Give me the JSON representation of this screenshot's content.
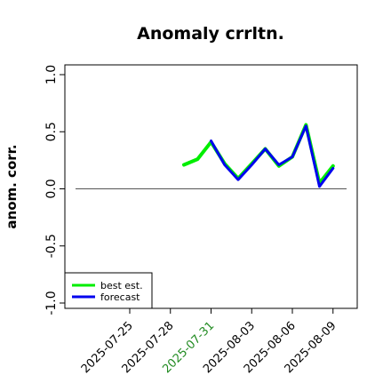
{
  "chart_data": {
    "type": "line",
    "title": "Anomaly crrltn.",
    "xlabel": "",
    "ylabel": "anom. corr.",
    "ylim": [
      -1.0,
      1.0
    ],
    "yticks": [
      -1.0,
      -0.5,
      0.0,
      0.5,
      1.0
    ],
    "ytick_labels": [
      "-1.0",
      "-0.5",
      "0.0",
      "0.5",
      "1.0"
    ],
    "xlim": [
      "2025-07-21",
      "2025-08-10"
    ],
    "xticks": [
      "2025-07-25",
      "2025-07-28",
      "2025-07-31",
      "2025-08-03",
      "2025-08-06",
      "2025-08-09"
    ],
    "xtick_colors": [
      "#000000",
      "#000000",
      "#228B22",
      "#000000",
      "#000000",
      "#000000"
    ],
    "reference_line": 0.0,
    "grid": false,
    "legend_position": "bottom-left",
    "series": [
      {
        "name": "best est.",
        "color": "#00ee00",
        "x": [
          "2025-07-29",
          "2025-07-30",
          "2025-07-31",
          "2025-08-01",
          "2025-08-02",
          "2025-08-03",
          "2025-08-04",
          "2025-08-05",
          "2025-08-06",
          "2025-08-07",
          "2025-08-08",
          "2025-08-09"
        ],
        "y": [
          0.21,
          0.26,
          0.41,
          0.22,
          0.09,
          0.22,
          0.35,
          0.2,
          0.28,
          0.56,
          0.05,
          0.2
        ]
      },
      {
        "name": "forecast",
        "color": "#0000ee",
        "x": [
          "2025-07-31",
          "2025-08-01",
          "2025-08-02",
          "2025-08-03",
          "2025-08-04",
          "2025-08-05",
          "2025-08-06",
          "2025-08-07",
          "2025-08-08",
          "2025-08-09"
        ],
        "y": [
          0.42,
          0.21,
          0.08,
          0.21,
          0.35,
          0.21,
          0.28,
          0.55,
          0.02,
          0.18
        ]
      }
    ]
  }
}
